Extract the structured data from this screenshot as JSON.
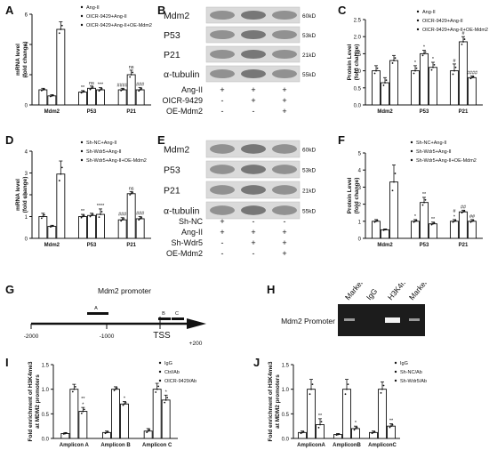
{
  "panels": {
    "A": {
      "label": "A",
      "ylabel": "mRNA level\n(fold change)",
      "legend": [
        "Ang-II",
        "OICR-9429+Ang-II",
        "OICR-9429+Ang-II+OE-Mdm2"
      ],
      "categories": [
        "Mdm2",
        "P53",
        "P21"
      ],
      "ylim": [
        0,
        6
      ],
      "yticks": [
        0,
        2,
        4,
        6
      ],
      "series": [
        {
          "values": [
            1.0,
            0.85,
            1.0
          ]
        },
        {
          "values": [
            0.6,
            1.1,
            2.0
          ]
        },
        {
          "values": [
            5.0,
            1.0,
            1.0
          ]
        }
      ],
      "errors": [
        [
          0.1,
          0.1,
          0.1
        ],
        [
          0.08,
          0.15,
          0.3
        ],
        [
          0.5,
          0.15,
          0.15
        ]
      ],
      "sig": [
        [
          "",
          "**",
          "####"
        ],
        [
          "",
          "ns",
          "ns"
        ],
        [
          "",
          "***",
          "###"
        ]
      ]
    },
    "B": {
      "label": "B",
      "bands": [
        "Mdm2",
        "P53",
        "P21",
        "α-tubulin"
      ],
      "sizes": [
        "60kD",
        "53kD",
        "21kD",
        "55kD"
      ],
      "conditions": [
        {
          "name": "Ang-II",
          "marks": [
            "+",
            "+",
            "+"
          ]
        },
        {
          "name": "OICR-9429",
          "marks": [
            "-",
            "+",
            "+"
          ]
        },
        {
          "name": "OE-Mdm2",
          "marks": [
            "-",
            "-",
            "+"
          ]
        }
      ]
    },
    "C": {
      "label": "C",
      "ylabel": "Protein Level\n(fold change)",
      "legend": [
        "Ang-II",
        "OICR-9429+Ang-II",
        "OICR-9429+Ang-II+OE-Mdm2"
      ],
      "categories": [
        "Mdm2",
        "P53",
        "P21"
      ],
      "ylim": [
        0,
        2.5
      ],
      "yticks": [
        0.0,
        0.5,
        1.0,
        1.5,
        2.0,
        2.5
      ],
      "series": [
        {
          "values": [
            1.0,
            1.0,
            1.0
          ]
        },
        {
          "values": [
            0.65,
            1.5,
            1.85
          ]
        },
        {
          "values": [
            1.3,
            1.1,
            0.8
          ]
        }
      ],
      "errors": [
        [
          0.15,
          0.15,
          0.2
        ],
        [
          0.15,
          0.1,
          0.15
        ],
        [
          0.15,
          0.15,
          0.05
        ]
      ],
      "sig": [
        [
          "",
          "*",
          "#"
        ],
        [
          "",
          "*",
          "#"
        ],
        [
          "",
          "*",
          "####"
        ]
      ]
    },
    "D": {
      "label": "D",
      "ylabel": "mRNA level\n(fold change)",
      "legend": [
        "Sh-NC+Ang-II",
        "Sh-Wdr5+Ang-II",
        "Sh-Wdr5+Ang-II+OE-Mdm2"
      ],
      "categories": [
        "Mdm2",
        "P53",
        "P21"
      ],
      "ylim": [
        0,
        4
      ],
      "yticks": [
        0,
        1,
        2,
        3,
        4
      ],
      "series": [
        {
          "values": [
            1.0,
            1.0,
            0.85
          ]
        },
        {
          "values": [
            0.55,
            1.05,
            2.05
          ]
        },
        {
          "values": [
            2.95,
            1.1,
            0.9
          ]
        }
      ],
      "errors": [
        [
          0.15,
          0.1,
          0.1
        ],
        [
          0.05,
          0.1,
          0.1
        ],
        [
          0.6,
          0.25,
          0.1
        ]
      ],
      "sig": [
        [
          "",
          "**",
          "###"
        ],
        [
          "",
          "",
          "ns"
        ],
        [
          "",
          "****",
          "###"
        ]
      ]
    },
    "E": {
      "label": "E",
      "bands": [
        "Mdm2",
        "P53",
        "P21",
        "α-tubulin"
      ],
      "sizes": [
        "60kD",
        "53kD",
        "21kD",
        "55kD"
      ],
      "conditions": [
        {
          "name": "Sh-NC",
          "marks": [
            "+",
            "-",
            "-"
          ]
        },
        {
          "name": "Ang-II",
          "marks": [
            "+",
            "+",
            "+"
          ]
        },
        {
          "name": "Sh-Wdr5",
          "marks": [
            "-",
            "+",
            "+"
          ]
        },
        {
          "name": "OE-Mdm2",
          "marks": [
            "-",
            "-",
            "+"
          ]
        }
      ]
    },
    "F": {
      "label": "F",
      "ylabel": "Protein Level\n(fold change)",
      "legend": [
        "Sh-NC+Ang-II",
        "Sh-Wdr5+Ang-II",
        "Sh-Wdr5+Ang-II+OE-Mdm2"
      ],
      "categories": [
        "Mdm2",
        "P53",
        "P21"
      ],
      "ylim": [
        0,
        5
      ],
      "yticks": [
        0,
        1,
        2,
        3,
        4,
        5
      ],
      "series": [
        {
          "values": [
            1.0,
            1.0,
            1.0
          ]
        },
        {
          "values": [
            0.5,
            2.1,
            1.55
          ]
        },
        {
          "values": [
            3.3,
            0.85,
            1.0
          ]
        }
      ],
      "errors": [
        [
          0.1,
          0.1,
          0.1
        ],
        [
          0.05,
          0.3,
          0.1
        ],
        [
          1.0,
          0.1,
          0.1
        ]
      ],
      "sig": [
        [
          "",
          "*",
          "#\n*"
        ],
        [
          "",
          "**",
          "##"
        ],
        [
          "",
          "**",
          "##"
        ]
      ]
    },
    "G": {
      "label": "G",
      "title": "Mdm2 promoter",
      "amplicons": [
        "A",
        "B",
        "C"
      ],
      "ticks": [
        "-2000",
        "-1000",
        "TSS",
        "+200"
      ]
    },
    "H": {
      "label": "H",
      "lanes": [
        "Marker",
        "IgG",
        "H3K4me3",
        "Marker"
      ],
      "row_label": "Mdm2 Promoter"
    },
    "I": {
      "label": "I",
      "ylabel": "Fold enrichment of H3K4me3\nat MDM2 promoters",
      "legend": [
        "IgG",
        "Ctrl/Ab",
        "OICR-9429/Ab"
      ],
      "categories": [
        "Amplicon A",
        "Amplicon B",
        "Amplicon C"
      ],
      "ylim": [
        0,
        1.5
      ],
      "yticks": [
        0.0,
        0.5,
        1.0,
        1.5
      ],
      "series": [
        {
          "values": [
            0.1,
            0.12,
            0.15
          ]
        },
        {
          "values": [
            1.0,
            1.0,
            1.0
          ]
        },
        {
          "values": [
            0.55,
            0.7,
            0.78
          ]
        }
      ],
      "errors": [
        [
          0.02,
          0.03,
          0.05
        ],
        [
          0.1,
          0.05,
          0.12
        ],
        [
          0.08,
          0.05,
          0.1
        ]
      ],
      "sig": [
        [
          "",
          "",
          ""
        ],
        [
          "",
          "",
          ""
        ],
        [
          "**\n*",
          "*",
          "*"
        ]
      ]
    },
    "J": {
      "label": "J",
      "ylabel": "Fold enrichment of H3K4me3\nat MDM2 promoters",
      "legend": [
        "IgG",
        "Sh-NC/Ab",
        "Sh-Wdr5/Ab"
      ],
      "categories": [
        "AmpliconA",
        "AmpliconB",
        "AmpliconC"
      ],
      "ylim": [
        0,
        1.5
      ],
      "yticks": [
        0.0,
        0.5,
        1.0,
        1.5
      ],
      "series": [
        {
          "values": [
            0.12,
            0.08,
            0.12
          ]
        },
        {
          "values": [
            1.0,
            1.0,
            1.0
          ]
        },
        {
          "values": [
            0.28,
            0.2,
            0.25
          ]
        }
      ],
      "errors": [
        [
          0.03,
          0.02,
          0.03
        ],
        [
          0.2,
          0.2,
          0.15
        ],
        [
          0.12,
          0.05,
          0.05
        ]
      ],
      "sig": [
        [
          "",
          "",
          ""
        ],
        [
          "",
          "",
          ""
        ],
        [
          "**",
          "*",
          "**"
        ]
      ]
    }
  }
}
